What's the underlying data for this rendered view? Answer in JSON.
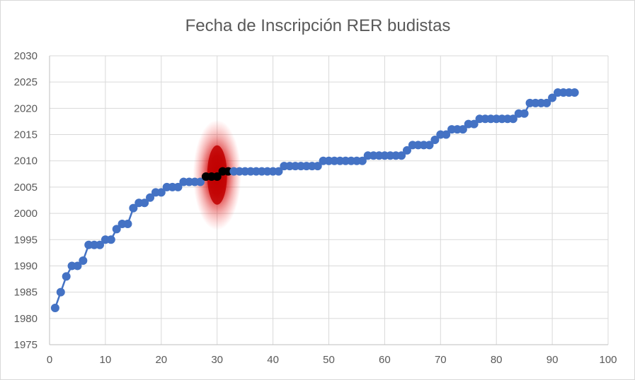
{
  "chart_data": {
    "type": "line",
    "title": "Fecha de Inscripción RER budistas",
    "xlabel": "",
    "ylabel": "",
    "xlim": [
      0,
      100
    ],
    "ylim": [
      1975,
      2030
    ],
    "x_ticks": [
      "0",
      "10",
      "20",
      "30",
      "40",
      "50",
      "60",
      "70",
      "80",
      "90",
      "100"
    ],
    "y_ticks": [
      "1975",
      "1980",
      "1985",
      "1990",
      "1995",
      "2000",
      "2005",
      "2010",
      "2015",
      "2020",
      "2025",
      "2030"
    ],
    "grid": true,
    "line_color": "#4472c4",
    "highlight_color": "#c00000",
    "highlight_marker_color": "#000000",
    "highlight_x": [
      28,
      29,
      30,
      31,
      32
    ],
    "series": [
      {
        "x": [
          1,
          2,
          3,
          4,
          5,
          6,
          7,
          8,
          9,
          10,
          11,
          12,
          13,
          14,
          15,
          16,
          17,
          18,
          19,
          20,
          21,
          22,
          23,
          24,
          25,
          26,
          27,
          28,
          29,
          30,
          31,
          32,
          33,
          34,
          35,
          36,
          37,
          38,
          39,
          40,
          41,
          42,
          43,
          44,
          45,
          46,
          47,
          48,
          49,
          50,
          51,
          52,
          53,
          54,
          55,
          56,
          57,
          58,
          59,
          60,
          61,
          62,
          63,
          64,
          65,
          66,
          67,
          68,
          69,
          70,
          71,
          72,
          73,
          74,
          75,
          76,
          77,
          78,
          79,
          80,
          81,
          82,
          83,
          84,
          85,
          86,
          87,
          88,
          89,
          90,
          91,
          92,
          93,
          94
        ],
        "values": [
          1982,
          1985,
          1988,
          1990,
          1990,
          1991,
          1994,
          1994,
          1994,
          1995,
          1995,
          1997,
          1998,
          1998,
          2001,
          2002,
          2002,
          2003,
          2004,
          2004,
          2005,
          2005,
          2005,
          2006,
          2006,
          2006,
          2006,
          2007,
          2007,
          2007,
          2008,
          2008,
          2008,
          2008,
          2008,
          2008,
          2008,
          2008,
          2008,
          2008,
          2008,
          2009,
          2009,
          2009,
          2009,
          2009,
          2009,
          2009,
          2010,
          2010,
          2010,
          2010,
          2010,
          2010,
          2010,
          2010,
          2011,
          2011,
          2011,
          2011,
          2011,
          2011,
          2011,
          2012,
          2013,
          2013,
          2013,
          2013,
          2014,
          2015,
          2015,
          2016,
          2016,
          2016,
          2017,
          2017,
          2018,
          2018,
          2018,
          2018,
          2018,
          2018,
          2018,
          2019,
          2019,
          2021,
          2021,
          2021,
          2021,
          2022,
          2023,
          2023,
          2023,
          2023
        ]
      }
    ]
  }
}
